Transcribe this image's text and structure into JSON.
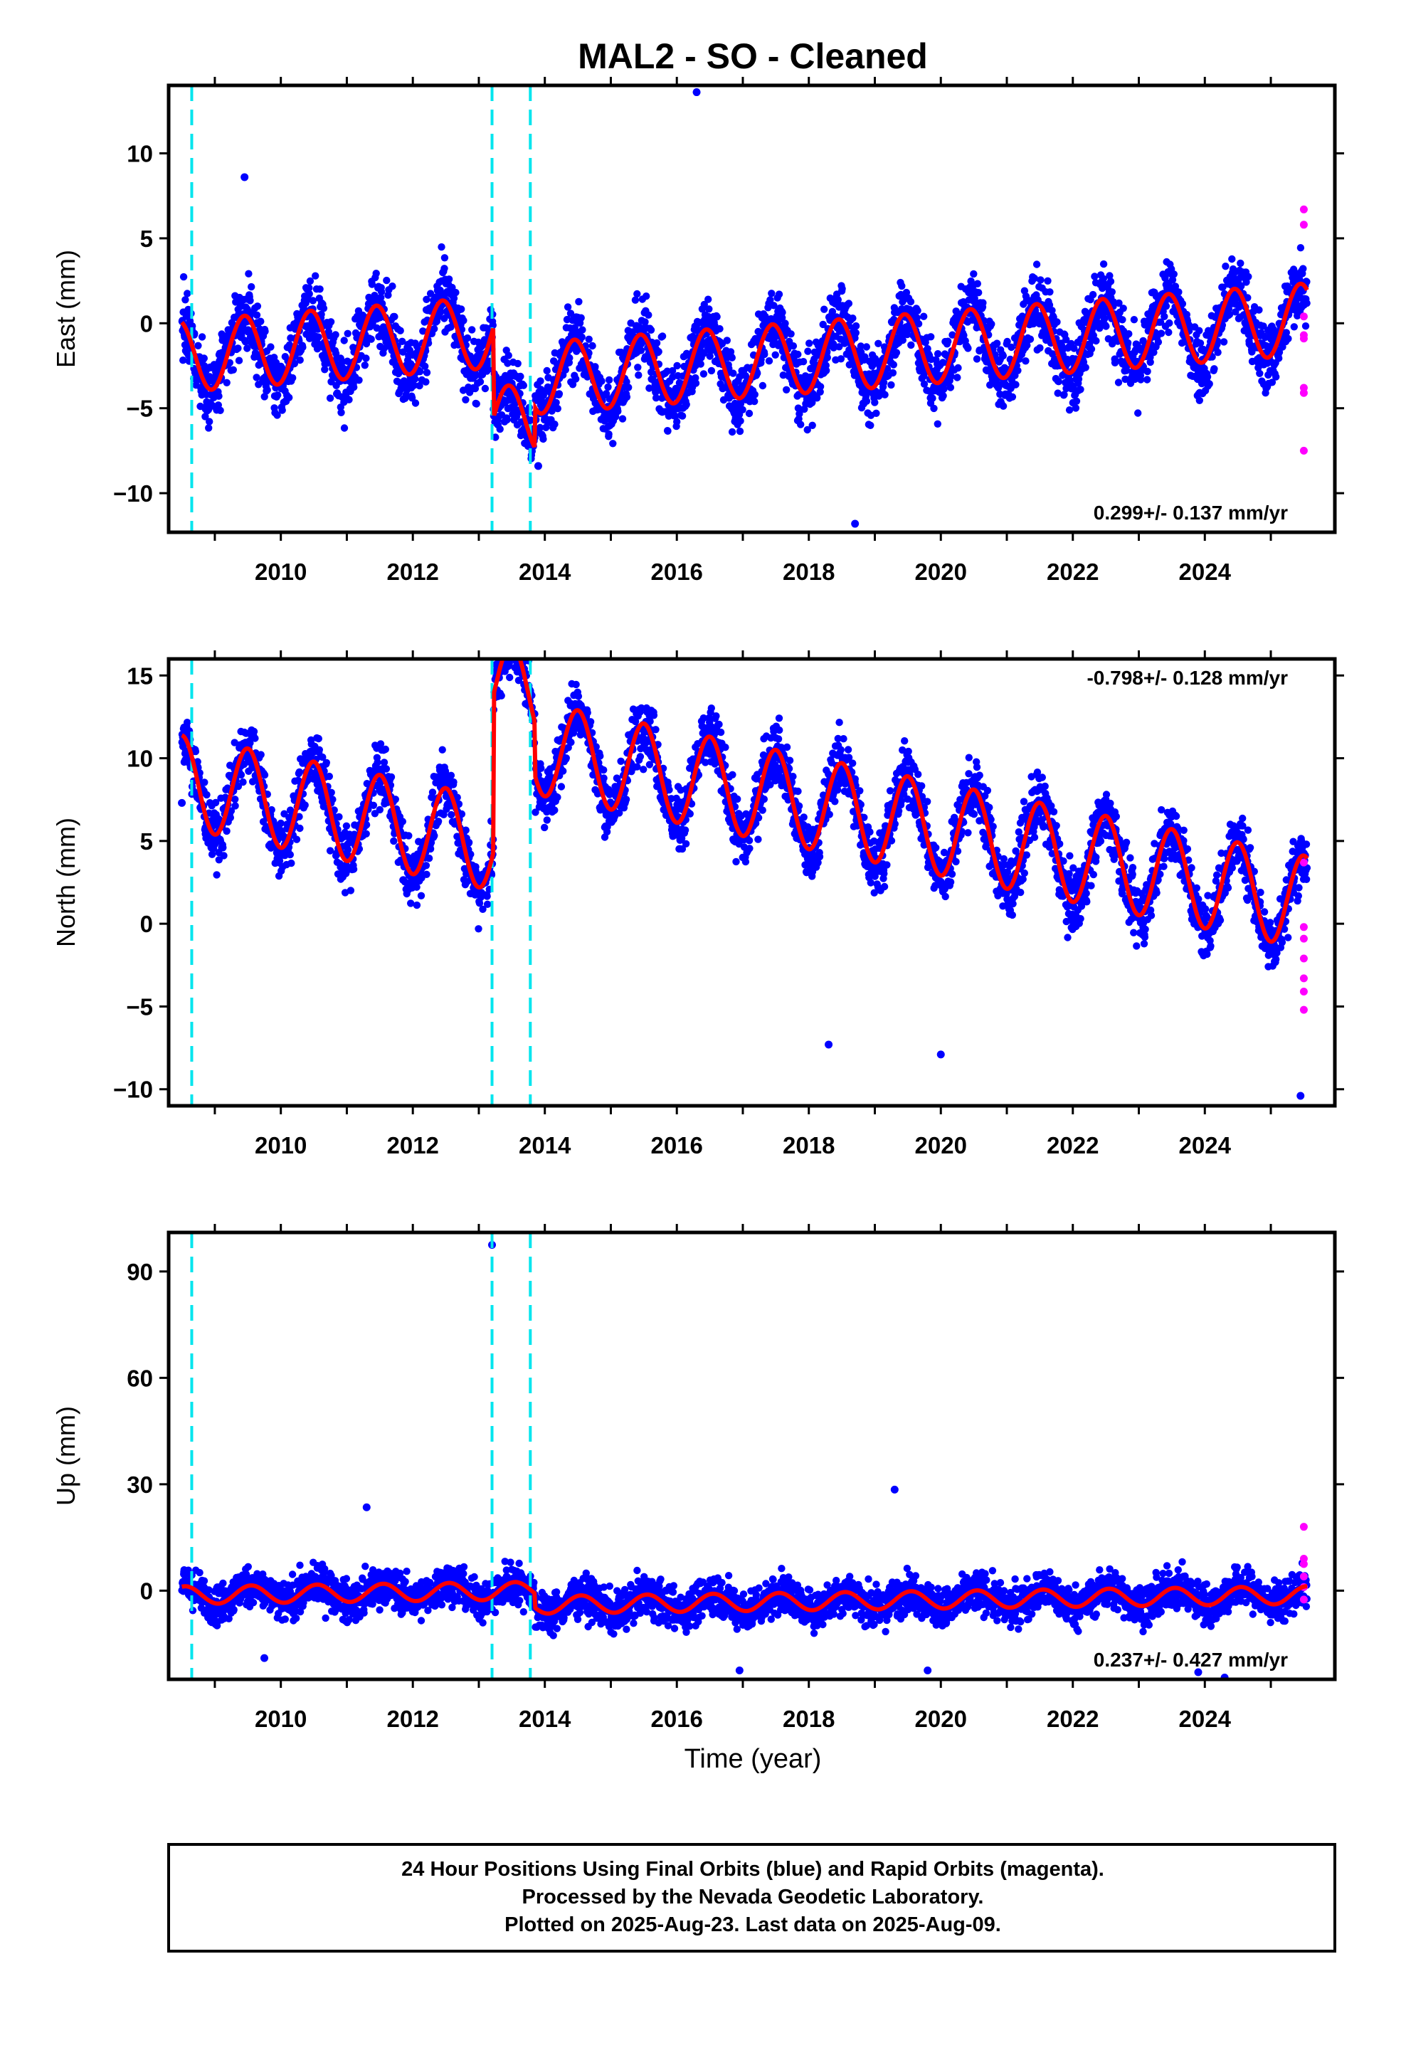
{
  "figure": {
    "title": "MAL2  - SO - Cleaned",
    "xlabel": "Time (year)",
    "footer": [
      "24 Hour Positions Using Final Orbits (blue) and Rapid Orbits (magenta).",
      "Processed by the Nevada Geodetic Laboratory.",
      "Plotted on 2025-Aug-23. Last data on 2025-Aug-09."
    ],
    "colors": {
      "final_points": "#0000ff",
      "rapid_points": "#ff00ff",
      "model": "#ff0000",
      "breaks": "#00e5ee",
      "frame": "#000000"
    },
    "x_tick_labels": [
      "2010",
      "2012",
      "2014",
      "2016",
      "2018",
      "2020",
      "2022",
      "2024"
    ]
  },
  "chart_data": [
    {
      "type": "scatter",
      "name": "east",
      "ylabel": "East (mm)",
      "rate_text": "0.299+/- 0.137 mm/yr",
      "rate_position": "bottom-right",
      "xlim": [
        2008.3,
        2025.97
      ],
      "ylim": [
        -12.3,
        14.0
      ],
      "yticks": [
        -10,
        -5,
        0,
        5,
        10
      ],
      "ytick_labels": [
        "−10",
        "−5",
        "0",
        "5",
        "10"
      ],
      "break_epochs": [
        2008.65,
        2013.2,
        2013.78
      ],
      "data_start": 2008.5,
      "data_end": 2025.55,
      "trend_mm_per_yr": 0.299,
      "offset_mm": 0.3,
      "seasonal_amplitude_mm": 2.1,
      "seasonal_peak_phase": 0.45,
      "noise_mm": 1.7,
      "steps": [
        {
          "epoch": 2013.22,
          "delta_mm": -5.3
        },
        {
          "epoch": 2013.85,
          "delta_mm": 2.4
        }
      ],
      "outliers": [
        [
          2016.3,
          13.6
        ],
        [
          2018.7,
          -11.8
        ],
        [
          2009.45,
          8.6
        ],
        [
          2013.9,
          -8.4
        ]
      ],
      "rapid_points": [
        [
          2025.5,
          6.7
        ],
        [
          2025.5,
          5.8
        ],
        [
          2025.5,
          0.4
        ],
        [
          2025.5,
          -0.7
        ],
        [
          2025.5,
          -0.9
        ],
        [
          2025.5,
          -3.8
        ],
        [
          2025.5,
          -4.1
        ],
        [
          2025.5,
          -7.5
        ]
      ]
    },
    {
      "type": "scatter",
      "name": "north",
      "ylabel": "North (mm)",
      "rate_text": "-0.798+/- 0.128 mm/yr",
      "rate_position": "top-right",
      "xlim": [
        2008.3,
        2025.97
      ],
      "ylim": [
        -11.0,
        16.0
      ],
      "yticks": [
        -10,
        -5,
        0,
        5,
        10,
        15
      ],
      "ytick_labels": [
        "−10",
        "−5",
        "0",
        "5",
        "10",
        "15"
      ],
      "break_epochs": [
        2008.65,
        2013.2,
        2013.78
      ],
      "data_start": 2008.5,
      "data_end": 2025.55,
      "trend_mm_per_yr": -0.798,
      "offset_mm": 2.6,
      "seasonal_amplitude_mm": 2.8,
      "seasonal_peak_phase": 0.5,
      "noise_mm": 1.5,
      "steps": [
        {
          "epoch": 2013.22,
          "delta_mm": 9.5
        },
        {
          "epoch": 2013.85,
          "delta_mm": -3.2
        }
      ],
      "outliers": [
        [
          2013.58,
          15.5
        ],
        [
          2008.5,
          7.3
        ],
        [
          2025.45,
          -10.4
        ],
        [
          2020.0,
          -7.9
        ],
        [
          2018.3,
          -7.3
        ]
      ],
      "rapid_points": [
        [
          2025.5,
          3.7
        ],
        [
          2025.5,
          -0.2
        ],
        [
          2025.5,
          -0.9
        ],
        [
          2025.5,
          -2.1
        ],
        [
          2025.5,
          -3.3
        ],
        [
          2025.5,
          -4.1
        ],
        [
          2025.5,
          -5.2
        ]
      ]
    },
    {
      "type": "scatter",
      "name": "up",
      "ylabel": "Up (mm)",
      "rate_text": "0.237+/- 0.427 mm/yr",
      "rate_position": "bottom-right",
      "xlim": [
        2008.3,
        2025.97
      ],
      "ylim": [
        -25.0,
        101.0
      ],
      "yticks": [
        0,
        30,
        60,
        90
      ],
      "ytick_labels": [
        "0",
        "30",
        "60",
        "90"
      ],
      "break_epochs": [
        2008.65,
        2013.2,
        2013.78
      ],
      "data_start": 2008.5,
      "data_end": 2025.55,
      "trend_mm_per_yr": 0.237,
      "offset_mm": 0.5,
      "seasonal_amplitude_mm": 2.5,
      "seasonal_peak_phase": 0.55,
      "noise_mm": 4.5,
      "steps": [
        {
          "epoch": 2013.85,
          "delta_mm": -4.0
        }
      ],
      "outliers": [
        [
          2013.2,
          97.5
        ],
        [
          2019.3,
          28.5
        ],
        [
          2011.3,
          23.5
        ],
        [
          2016.95,
          -22.5
        ],
        [
          2019.8,
          -22.5
        ],
        [
          2009.75,
          -19.0
        ],
        [
          2023.9,
          -23.0
        ],
        [
          2024.3,
          -24.5
        ]
      ],
      "rapid_points": [
        [
          2025.5,
          18.0
        ],
        [
          2025.5,
          9.0
        ],
        [
          2025.5,
          7.5
        ],
        [
          2025.5,
          4.0
        ],
        [
          2025.5,
          1.0
        ],
        [
          2025.5,
          -2.5
        ]
      ]
    }
  ]
}
